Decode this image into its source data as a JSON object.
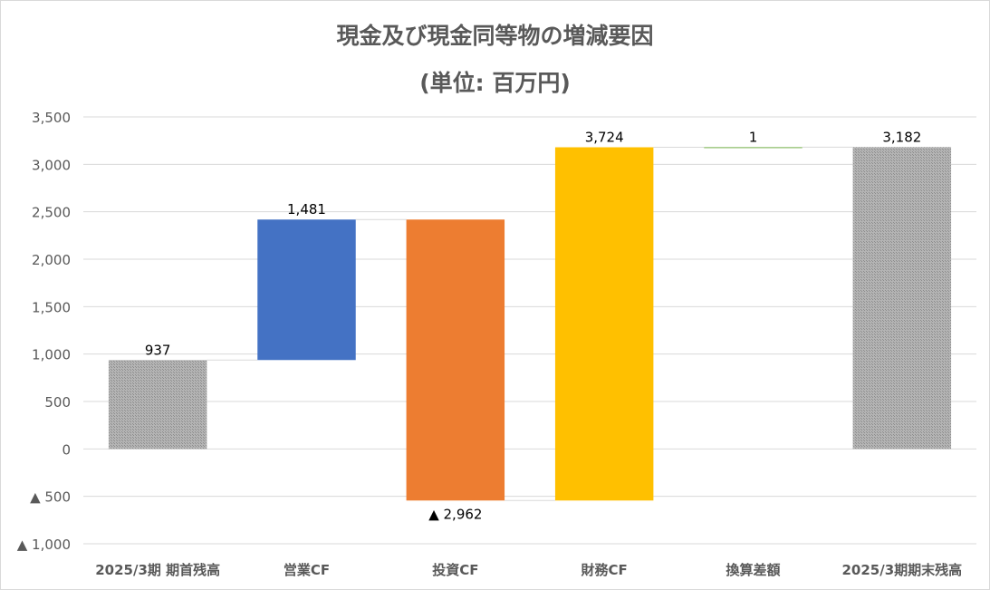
{
  "chart_data": {
    "type": "bar",
    "subtype": "waterfall",
    "title": "現金及び現金同等物の増減要因",
    "subtitle": "(単位: 百万円)",
    "xlabel": "",
    "ylabel": "",
    "ylim": [
      -1000,
      3500
    ],
    "y_ticks": [
      -1000,
      -500,
      0,
      500,
      1000,
      1500,
      2000,
      2500,
      3000,
      3500
    ],
    "y_tick_labels": [
      "▲ 1,000",
      "▲ 500",
      "0",
      "500",
      "1,000",
      "1,500",
      "2,000",
      "2,500",
      "3,000",
      "3,500"
    ],
    "grid": true,
    "legend": "none",
    "categories": [
      "2025/3期 期首残高",
      "営業CF",
      "投資CF",
      "財務CF",
      "換算差額",
      "2025/3期期末残高"
    ],
    "values": [
      937,
      1481,
      -2962,
      3724,
      1,
      3182
    ],
    "data_labels": [
      "937",
      "1,481",
      "▲ 2,962",
      "3,724",
      "1",
      "3,182"
    ],
    "bar_start": [
      0,
      937,
      2418,
      -544,
      3180,
      0
    ],
    "bar_end": [
      937,
      2418,
      -544,
      3180,
      3181,
      3182
    ],
    "bar_colors": [
      "#a6a6a6",
      "#4472c4",
      "#ed7d31",
      "#ffc000",
      "#70ad47",
      "#a6a6a6"
    ],
    "hatched_bars": [
      true,
      false,
      false,
      false,
      false,
      true
    ]
  }
}
